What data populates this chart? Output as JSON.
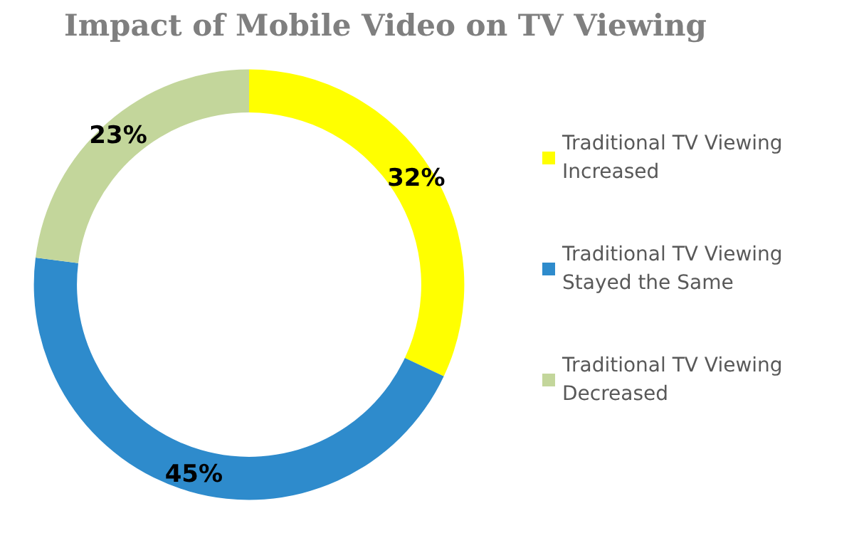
{
  "chart_data": {
    "type": "donut",
    "title": "Impact of Mobile Video on TV Viewing",
    "categories": [
      "Traditional TV Viewing Increased",
      "Traditional TV Viewing Stayed the Same",
      "Traditional TV Viewing Decreased"
    ],
    "values": [
      32,
      45,
      23
    ],
    "colors": [
      "#ffff00",
      "#2e8bcc",
      "#c3d69b"
    ],
    "value_labels": [
      "32%",
      "45%",
      "23%"
    ],
    "legend": "right"
  }
}
